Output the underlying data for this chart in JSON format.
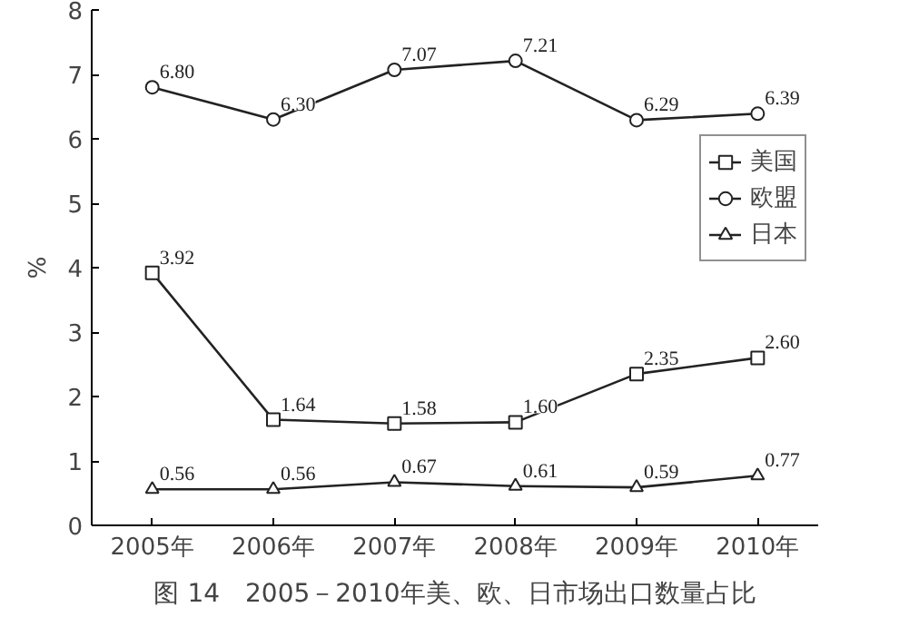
{
  "chart_data": {
    "type": "line",
    "title": "图 14　2005－2010年美、欧、日市场出口数量占比",
    "ylabel": "%",
    "categories": [
      "2005年",
      "2006年",
      "2007年",
      "2008年",
      "2009年",
      "2010年"
    ],
    "ylim": [
      0,
      8
    ],
    "yticks": [
      0,
      1,
      2,
      3,
      4,
      5,
      6,
      7,
      8
    ],
    "grid": false,
    "legend": "top right",
    "series": [
      {
        "name": "美国",
        "color": "#222222",
        "marker": "square",
        "values": [
          3.92,
          1.64,
          1.58,
          1.6,
          2.35,
          2.6
        ],
        "value_labels": [
          "3.92",
          "1.64",
          "1.58",
          "1.60",
          "2.35",
          "2.60"
        ]
      },
      {
        "name": "欧盟",
        "color": "#222222",
        "marker": "circle",
        "values": [
          6.8,
          6.3,
          7.07,
          7.21,
          6.29,
          6.39
        ],
        "value_labels": [
          "6.80",
          "6.30",
          "7.07",
          "7.21",
          "6.29",
          "6.39"
        ]
      },
      {
        "name": "日本",
        "color": "#222222",
        "marker": "triangle",
        "values": [
          0.56,
          0.56,
          0.67,
          0.61,
          0.59,
          0.77
        ],
        "value_labels": [
          "0.56",
          "0.56",
          "0.67",
          "0.61",
          "0.59",
          "0.77"
        ]
      }
    ]
  }
}
